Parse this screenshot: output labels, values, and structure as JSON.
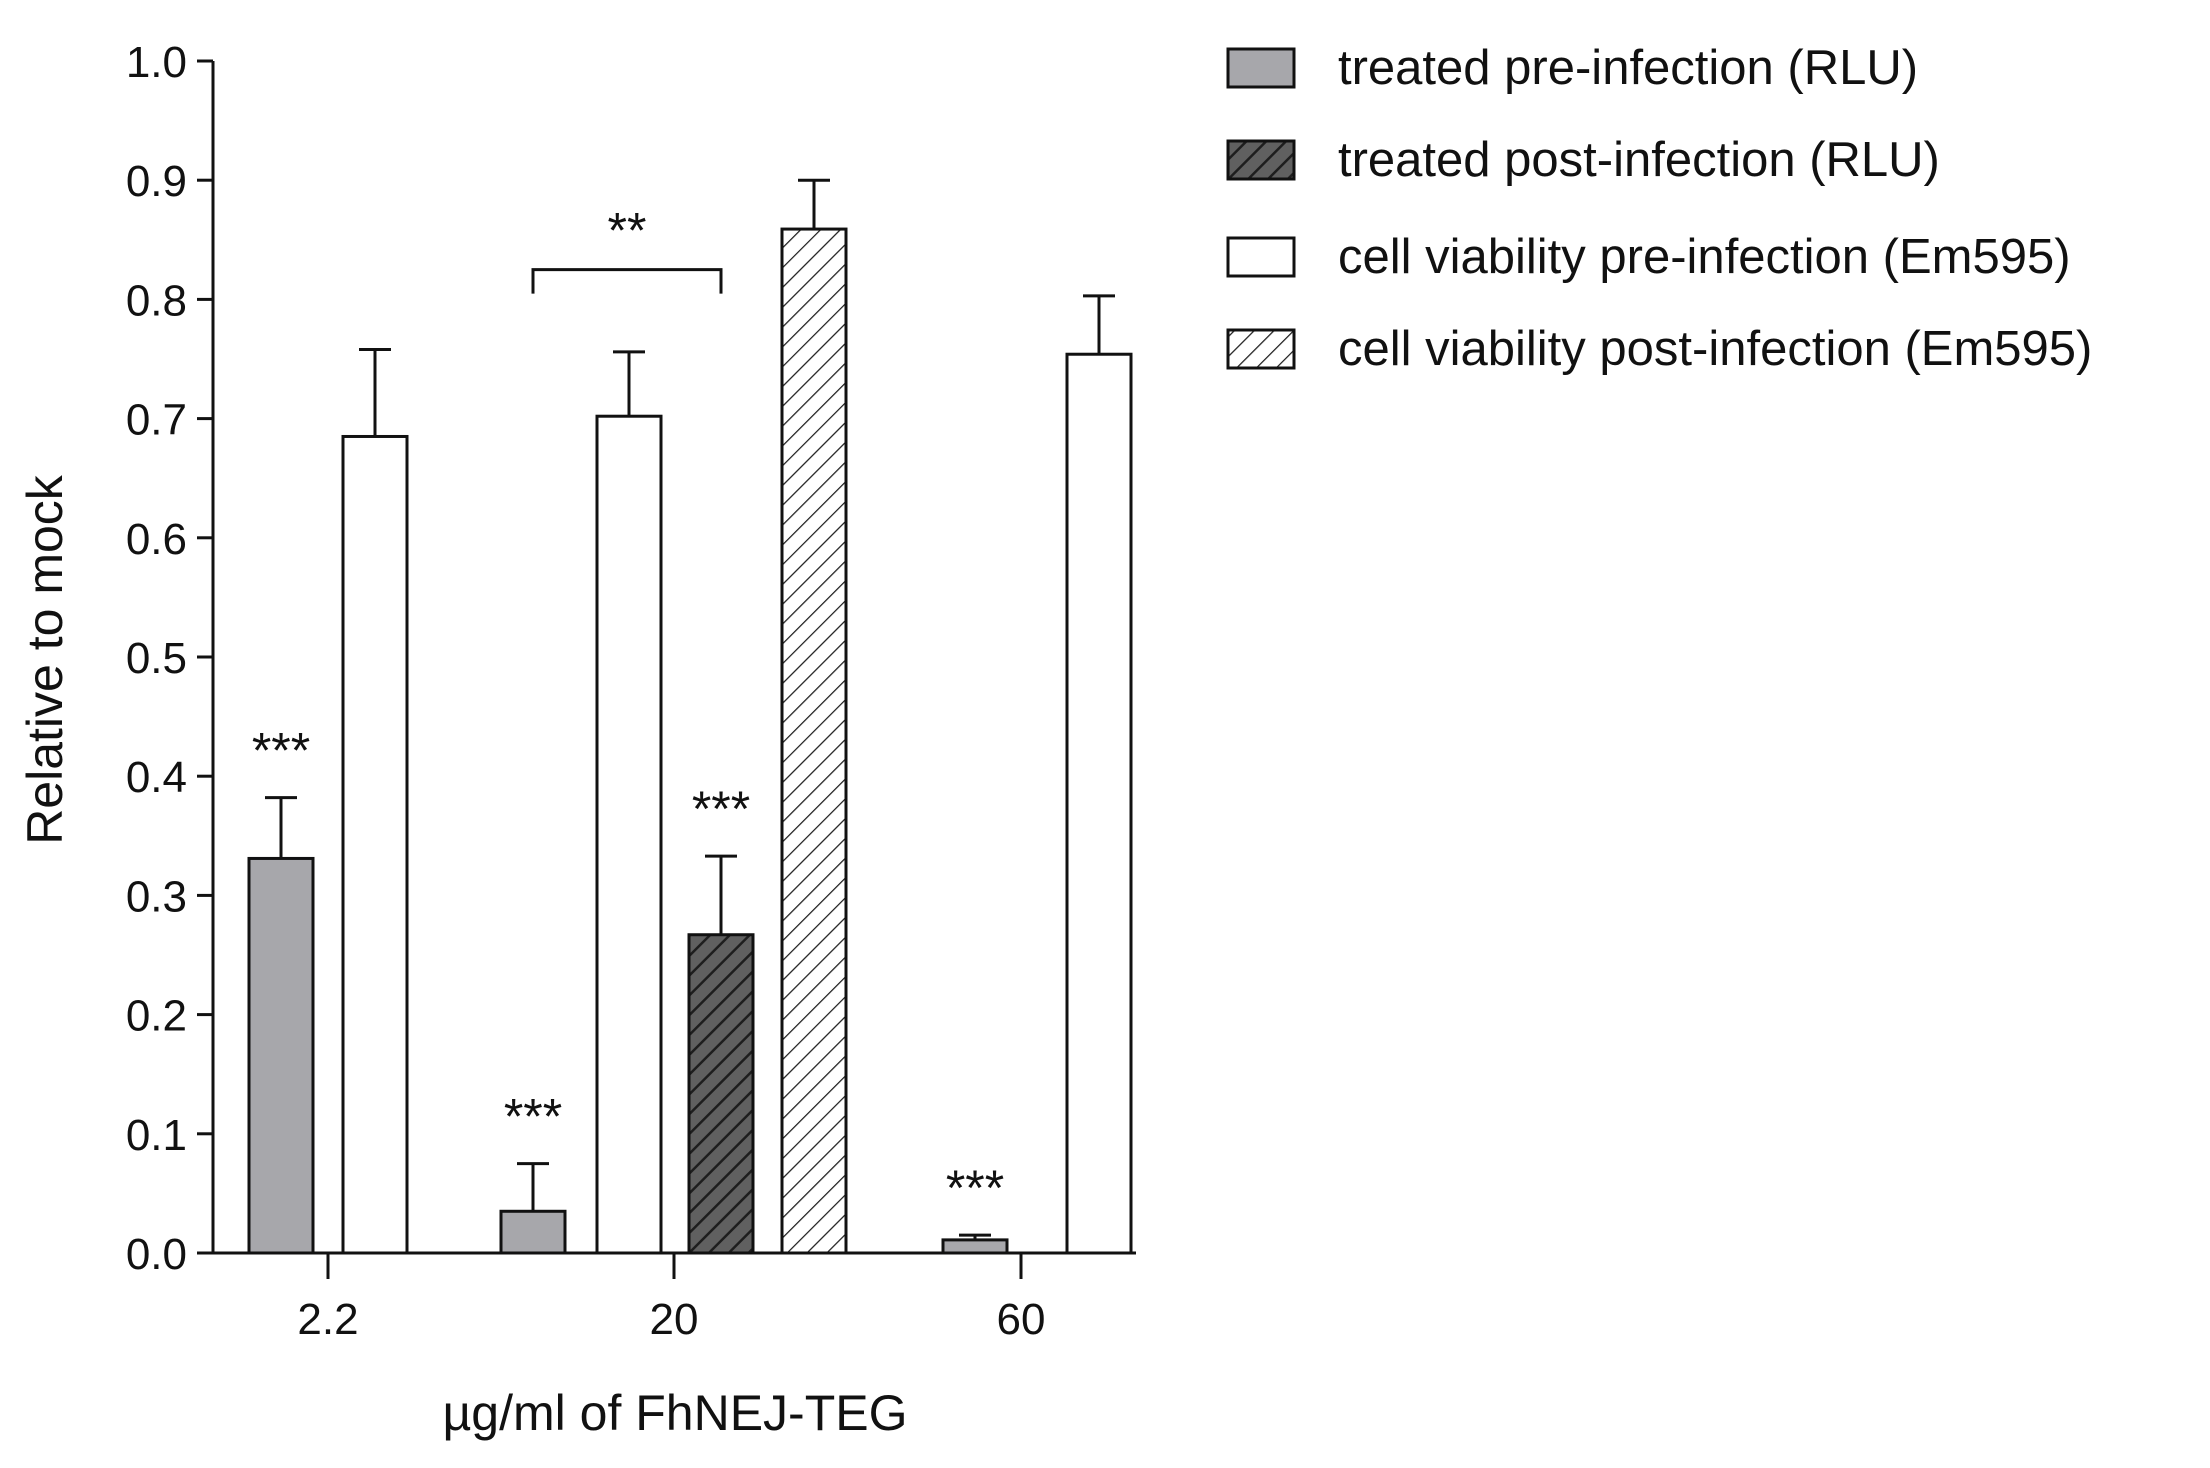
{
  "chart_data": {
    "type": "bar",
    "title": "",
    "xlabel": "µg/ml of FhNEJ-TEG",
    "ylabel": "Relative to mock",
    "ylim": [
      0.0,
      1.0
    ],
    "yticks": [
      "0.0",
      "0.1",
      "0.2",
      "0.3",
      "0.4",
      "0.5",
      "0.6",
      "0.7",
      "0.8",
      "0.9",
      "1.0"
    ],
    "categories": [
      "2.2",
      "20",
      "60"
    ],
    "legend_position": "top-right",
    "series": [
      {
        "name": "treated pre-infection (RLU)",
        "fill": "#a7a7ab",
        "pattern": "solid",
        "values": [
          0.331,
          0.035,
          0.011
        ],
        "errors": [
          0.051,
          0.04,
          0.004
        ]
      },
      {
        "name": "treated post-infection (RLU)",
        "fill": "#606060",
        "pattern": "hatch",
        "values": [
          null,
          0.267,
          null
        ],
        "errors": [
          null,
          0.066,
          null
        ]
      },
      {
        "name": "cell viability pre-infection (Em595)",
        "fill": "#ffffff",
        "pattern": "solid",
        "values": [
          0.685,
          0.702,
          0.754
        ],
        "errors": [
          0.073,
          0.054,
          0.049
        ]
      },
      {
        "name": "cell viability post-infection (Em595)",
        "fill": "#ffffff",
        "pattern": "hatch",
        "values": [
          null,
          0.859,
          null
        ],
        "errors": [
          null,
          0.041,
          null
        ]
      }
    ],
    "annotations": [
      {
        "text": "***",
        "series": 0,
        "category": 0
      },
      {
        "text": "***",
        "series": 0,
        "category": 1
      },
      {
        "text": "***",
        "series": 1,
        "category": 1
      },
      {
        "text": "***",
        "series": 0,
        "category": 2
      }
    ],
    "brackets": [
      {
        "text": "**",
        "from": {
          "series": 0,
          "category": 1
        },
        "to": {
          "series": 1,
          "category": 1
        },
        "level": 0.825
      }
    ]
  }
}
